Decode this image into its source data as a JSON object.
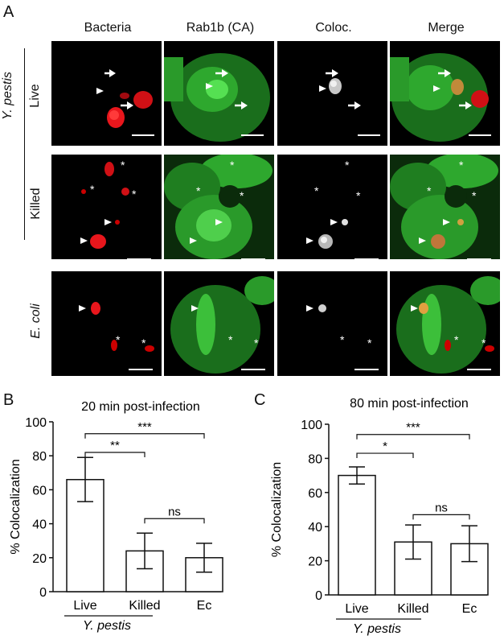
{
  "panel_a": {
    "letter": "A",
    "columns": [
      "Bacteria",
      "Rab1b (CA)",
      "Coloc.",
      "Merge"
    ],
    "group_label": "Y. pestis",
    "rows": [
      "Live",
      "Killed",
      "E. coli"
    ]
  },
  "chart_data": [
    {
      "panel": "B",
      "type": "bar",
      "title": "20 min post-infection",
      "ylabel": "% Colocalization",
      "categories": [
        "Live",
        "Killed",
        "Ec"
      ],
      "values": [
        66,
        24,
        20
      ],
      "error": [
        13,
        10.5,
        8.5
      ],
      "ylim": [
        0,
        100
      ],
      "yticks": [
        0,
        20,
        40,
        60,
        80,
        100
      ],
      "group_label": "Y. pestis",
      "significance": [
        {
          "from": 0,
          "to": 2,
          "label": "***"
        },
        {
          "from": 0,
          "to": 1,
          "label": "**"
        },
        {
          "from": 1,
          "to": 2,
          "label": "ns"
        }
      ]
    },
    {
      "panel": "C",
      "type": "bar",
      "title": "80 min post-infection",
      "ylabel": "% Colocalization",
      "categories": [
        "Live",
        "Killed",
        "Ec"
      ],
      "values": [
        70,
        31,
        30
      ],
      "error": [
        5,
        10,
        10.5
      ],
      "ylim": [
        0,
        100
      ],
      "yticks": [
        0,
        20,
        40,
        60,
        80,
        100
      ],
      "group_label": "Y. pestis",
      "significance": [
        {
          "from": 0,
          "to": 2,
          "label": "***"
        },
        {
          "from": 0,
          "to": 1,
          "label": "*"
        },
        {
          "from": 1,
          "to": 2,
          "label": "ns"
        }
      ]
    }
  ]
}
